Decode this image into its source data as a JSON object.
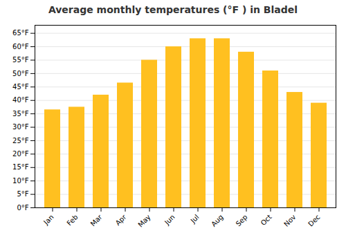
{
  "chart_data": {
    "type": "bar",
    "title": "Average monthly temperatures (°F ) in Bladel",
    "categories": [
      "Jan",
      "Feb",
      "Mar",
      "Apr",
      "May",
      "Jun",
      "Jul",
      "Aug",
      "Sep",
      "Oct",
      "Nov",
      "Dec"
    ],
    "values": [
      36.5,
      37.5,
      42,
      46.5,
      55,
      60,
      63,
      63,
      58,
      51,
      43,
      39
    ],
    "color": "#FFC020",
    "ylim": [
      0,
      68
    ],
    "yticks": [
      {
        "value": 0,
        "label": "0°F"
      },
      {
        "value": 5,
        "label": "5°F"
      },
      {
        "value": 10,
        "label": "10°F"
      },
      {
        "value": 15,
        "label": "15°F"
      },
      {
        "value": 20,
        "label": "20°F"
      },
      {
        "value": 25,
        "label": "25°F"
      },
      {
        "value": 30,
        "label": "30°F"
      },
      {
        "value": 35,
        "label": "35°F"
      },
      {
        "value": 40,
        "label": "40°F"
      },
      {
        "value": 45,
        "label": "45°F"
      },
      {
        "value": 50,
        "label": "50°F"
      },
      {
        "value": 55,
        "label": "55°F"
      },
      {
        "value": 60,
        "label": "60°F"
      },
      {
        "value": 65,
        "label": "65°F"
      }
    ],
    "grid": true
  }
}
